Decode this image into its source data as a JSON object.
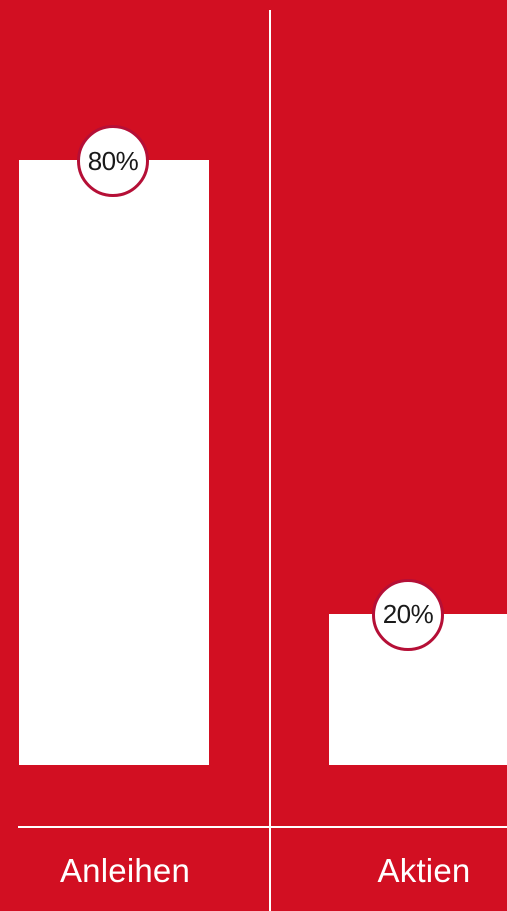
{
  "chart_data": {
    "type": "bar",
    "title": "",
    "xlabel": "",
    "ylabel": "",
    "categories": [
      "Anleihen",
      "Aktien"
    ],
    "values": [
      80,
      20
    ],
    "value_labels": [
      "80%",
      "20%"
    ],
    "ylim": [
      0,
      100
    ],
    "grid": false,
    "legend": "none"
  },
  "colors": {
    "background": "#d20f22",
    "bar": "#ffffff",
    "bubble_border": "#b50f36",
    "text_dark": "#1a1a1a",
    "text_light": "#ffffff"
  }
}
